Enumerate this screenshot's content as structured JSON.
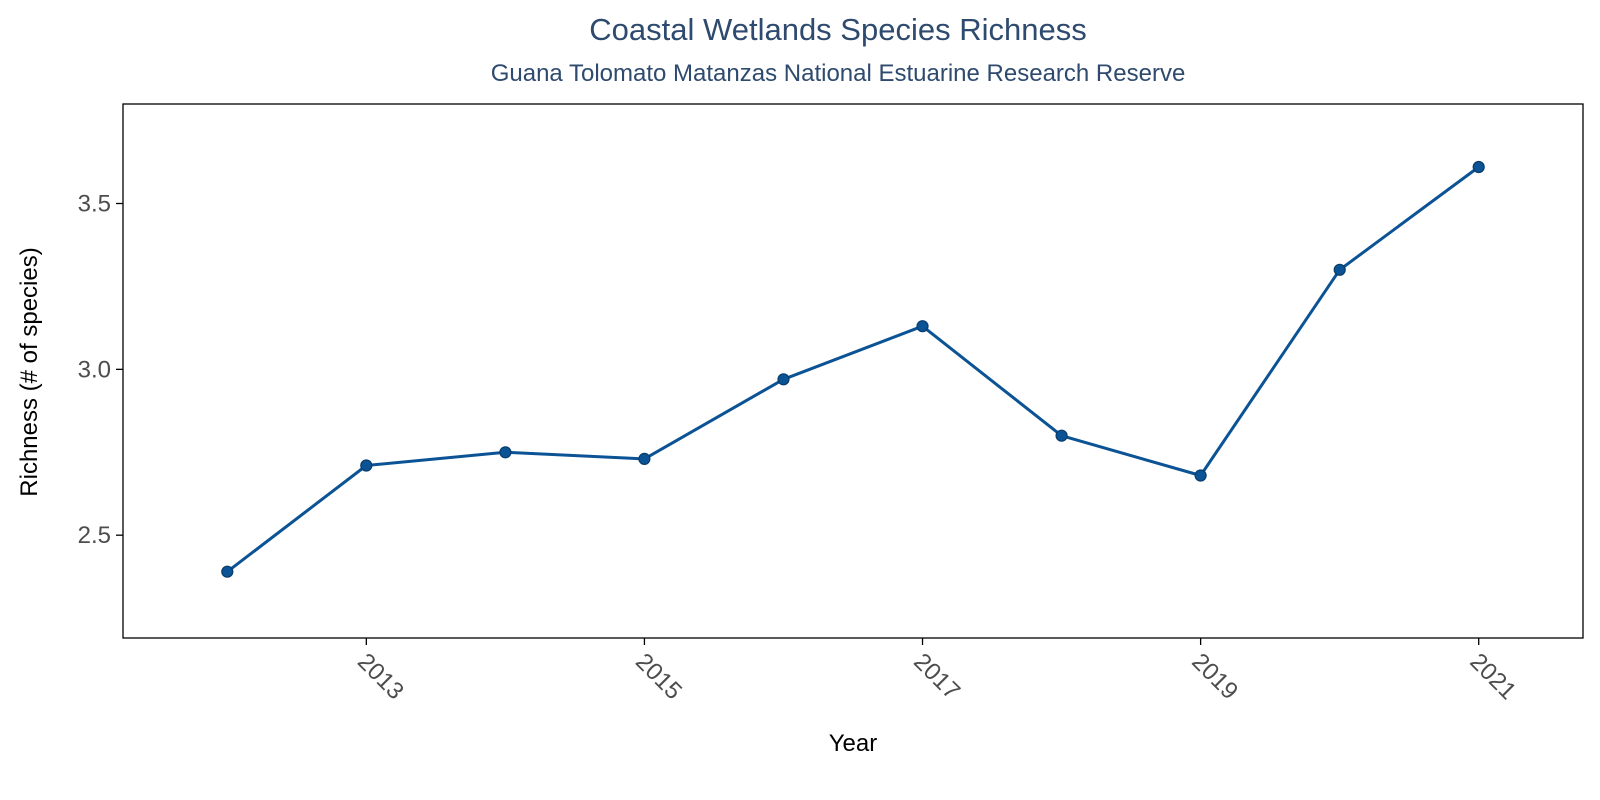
{
  "colors": {
    "title": "#2e4a6e",
    "line": "#0b5394",
    "point": "#0b5394",
    "axis": "#000000",
    "tick_text": "#4d4d4d",
    "background": "#ffffff"
  },
  "chart_data": {
    "type": "line",
    "title": "Coastal Wetlands Species Richness",
    "subtitle": "Guana Tolomato Matanzas National Estuarine Research Reserve",
    "xlabel": "Year",
    "ylabel": "Richness (# of species)",
    "xlim": [
      2011.25,
      2021.75
    ],
    "ylim": [
      2.19,
      3.8
    ],
    "x_ticks": [
      2013,
      2015,
      2017,
      2019,
      2021
    ],
    "y_ticks": [
      2.5,
      3.0,
      3.5
    ],
    "y_tick_labels": [
      "2.5",
      "3.0",
      "3.5"
    ],
    "grid": false,
    "legend": "none",
    "x": [
      2012,
      2013,
      2014,
      2015,
      2016,
      2017,
      2018,
      2019,
      2020,
      2021
    ],
    "values": [
      2.39,
      2.71,
      2.75,
      2.73,
      2.97,
      3.13,
      2.8,
      2.68,
      3.3,
      3.61
    ]
  }
}
